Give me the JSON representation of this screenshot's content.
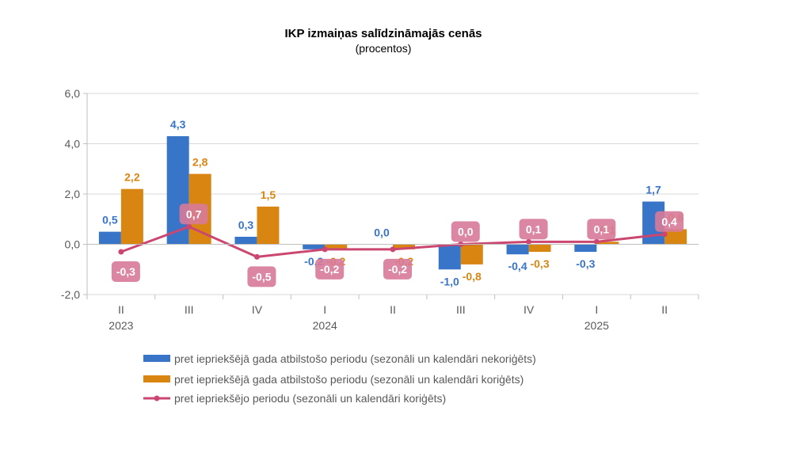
{
  "chart_data": {
    "type": "bar",
    "title": "IKP izmaiņas salīdzināmajās cenās",
    "subtitle": "(procentos)",
    "categories": [
      "II",
      "III",
      "IV",
      "I",
      "II",
      "III",
      "IV",
      "I",
      "II"
    ],
    "year_labels": [
      "2023",
      "",
      "",
      "2024",
      "",
      "",
      "",
      "2025",
      ""
    ],
    "ylim": [
      -2.0,
      6.0
    ],
    "yticks": [
      "-2,0",
      "0,0",
      "2,0",
      "4,0",
      "6,0"
    ],
    "grid": true,
    "legend_position": "bottom",
    "series": [
      {
        "name": "pret iepriekšējā gada atbilstošo periodu (sezonāli un kalendāri nekoriģēts)",
        "kind": "bar",
        "color": "#3874C8",
        "values": [
          0.5,
          4.3,
          0.3,
          -0.2,
          0.0,
          -1.0,
          -0.4,
          -0.3,
          1.7
        ],
        "labels": [
          "0,5",
          "4,3",
          "0,3",
          "-0,2",
          "0,0",
          "-1,0",
          "-0,4",
          "-0,3",
          "1,7"
        ]
      },
      {
        "name": "pret iepriekšējā gada atbilstošo periodu (sezonāli un kalendāri koriģēts)",
        "kind": "bar",
        "color": "#D98512",
        "values": [
          2.2,
          2.8,
          1.5,
          -0.2,
          -0.2,
          -0.8,
          -0.3,
          0.1,
          0.6
        ],
        "labels": [
          "2,2",
          "2,8",
          "1,5",
          "-0,2",
          "-0,2",
          "-0,8",
          "-0,3",
          "0,1",
          "0,6"
        ]
      },
      {
        "name": "pret iepriekšējo periodu (sezonāli un kalendāri koriģēts)",
        "kind": "line",
        "color": "#CB4670",
        "values": [
          -0.3,
          0.7,
          -0.5,
          -0.2,
          -0.2,
          0.0,
          0.1,
          0.1,
          0.4
        ],
        "labels": [
          "-0,3",
          "0,7",
          "-0,5",
          "-0,2",
          "-0,2",
          "0,0",
          "0,1",
          "0,1",
          "0,4"
        ]
      }
    ]
  }
}
